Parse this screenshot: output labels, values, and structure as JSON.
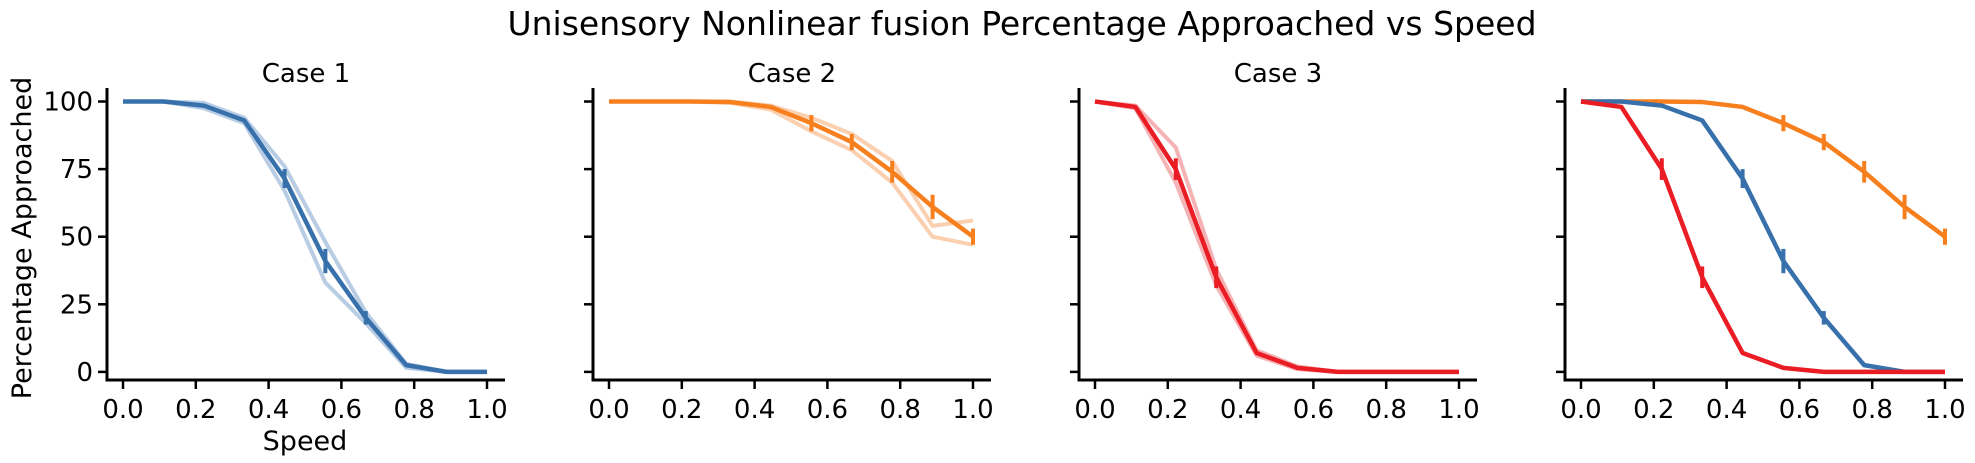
{
  "figure": {
    "title": "Unisensory Nonlinear fusion Percentage Approached vs Speed",
    "shared_ylabel": "Percentage Approached",
    "shared_xlabel": "Speed"
  },
  "colors": {
    "case1": "#3770ab",
    "case2": "#f77f1e",
    "case3": "#ea1c24",
    "case1_faint": "#b8cde4",
    "case2_faint": "#fbd0b0",
    "case3_faint": "#f6b3b6"
  },
  "chart_data": [
    {
      "type": "line",
      "title": "Case 1",
      "xlabel": "Speed",
      "ylabel": "Percentage Approached",
      "xlim": [
        0,
        1
      ],
      "ylim": [
        -3,
        105
      ],
      "xticks": [
        "0.0",
        "0.2",
        "0.4",
        "0.6",
        "0.8",
        "1.0"
      ],
      "yticks": [
        "0",
        "25",
        "50",
        "75",
        "100"
      ],
      "series": [
        {
          "key": "case1",
          "x": [
            0,
            0.111,
            0.222,
            0.333,
            0.444,
            0.556,
            0.667,
            0.778,
            0.889,
            1.0
          ],
          "y": [
            100,
            100,
            98.5,
            93,
            71.5,
            41,
            20,
            2.5,
            0,
            0
          ],
          "err": [
            0,
            0,
            0,
            0,
            3.5,
            4.5,
            2.5,
            0,
            0,
            0
          ],
          "faint_runs": [
            [
              100,
              100,
              99.5,
              94,
              76,
              48,
              22,
              3,
              0,
              0
            ],
            [
              100,
              100,
              97.5,
              92,
              67,
              33,
              18,
              1.5,
              0,
              0
            ]
          ]
        }
      ]
    },
    {
      "type": "line",
      "title": "Case 2",
      "xlabel": "",
      "ylabel": "",
      "xlim": [
        0,
        1
      ],
      "ylim": [
        -3,
        105
      ],
      "xticks": [
        "0.0",
        "0.2",
        "0.4",
        "0.6",
        "0.8",
        "1.0"
      ],
      "yticks": [
        "0",
        "25",
        "50",
        "75",
        "100"
      ],
      "series": [
        {
          "key": "case2",
          "x": [
            0,
            0.111,
            0.222,
            0.333,
            0.444,
            0.556,
            0.667,
            0.778,
            0.889,
            1.0
          ],
          "y": [
            100,
            100,
            100,
            99.8,
            98,
            92,
            85,
            74,
            61,
            50
          ],
          "err": [
            0,
            0,
            0,
            0,
            0,
            3,
            3,
            4,
            4.5,
            3
          ],
          "faint_runs": [
            [
              100,
              100,
              100,
              100,
              98.5,
              94,
              88,
              78,
              54,
              56
            ],
            [
              100,
              100,
              100,
              99.5,
              97,
              89,
              82,
              70,
              50,
              47
            ]
          ]
        }
      ]
    },
    {
      "type": "line",
      "title": "Case 3",
      "xlabel": "",
      "ylabel": "",
      "xlim": [
        0,
        1
      ],
      "ylim": [
        -3,
        105
      ],
      "xticks": [
        "0.0",
        "0.2",
        "0.4",
        "0.6",
        "0.8",
        "1.0"
      ],
      "yticks": [
        "0",
        "25",
        "50",
        "75",
        "100"
      ],
      "series": [
        {
          "key": "case3",
          "x": [
            0,
            0.111,
            0.222,
            0.333,
            0.444,
            0.556,
            0.667,
            0.778,
            0.889,
            1.0
          ],
          "y": [
            100,
            98,
            75,
            35,
            7,
            1.5,
            0,
            0,
            0,
            0
          ],
          "err": [
            0,
            0,
            4,
            4,
            0,
            0,
            0,
            0,
            0,
            0
          ],
          "faint_runs": [
            [
              100,
              98.5,
              83,
              38,
              8,
              2,
              0,
              0,
              0,
              0
            ],
            [
              100,
              97.5,
              70,
              32,
              6,
              1,
              0,
              0,
              0,
              0
            ]
          ]
        }
      ]
    },
    {
      "type": "line",
      "title": "",
      "xlabel": "",
      "ylabel": "",
      "xlim": [
        0,
        1
      ],
      "ylim": [
        -3,
        105
      ],
      "xticks": [
        "0.0",
        "0.2",
        "0.4",
        "0.6",
        "0.8",
        "1.0"
      ],
      "yticks": [
        "0",
        "25",
        "50",
        "75",
        "100"
      ],
      "series": [
        {
          "key": "case2",
          "x": [
            0,
            0.111,
            0.222,
            0.333,
            0.444,
            0.556,
            0.667,
            0.778,
            0.889,
            1.0
          ],
          "y": [
            100,
            100,
            100,
            99.8,
            98,
            92,
            85,
            74,
            61,
            50
          ],
          "err": [
            0,
            0,
            0,
            0,
            0,
            3,
            3,
            4,
            4.5,
            3
          ]
        },
        {
          "key": "case1",
          "x": [
            0,
            0.111,
            0.222,
            0.333,
            0.444,
            0.556,
            0.667,
            0.778,
            0.889,
            1.0
          ],
          "y": [
            100,
            100,
            98.5,
            93,
            71.5,
            41,
            20,
            2.5,
            0,
            0
          ],
          "err": [
            0,
            0,
            0,
            0,
            3.5,
            4.5,
            2.5,
            0,
            0,
            0
          ]
        },
        {
          "key": "case3",
          "x": [
            0,
            0.111,
            0.222,
            0.333,
            0.444,
            0.556,
            0.667,
            0.778,
            0.889,
            1.0
          ],
          "y": [
            100,
            98,
            75,
            35,
            7,
            1.5,
            0,
            0,
            0,
            0
          ],
          "err": [
            0,
            0,
            4,
            4,
            0,
            0,
            0,
            0,
            0,
            0
          ]
        }
      ]
    }
  ]
}
